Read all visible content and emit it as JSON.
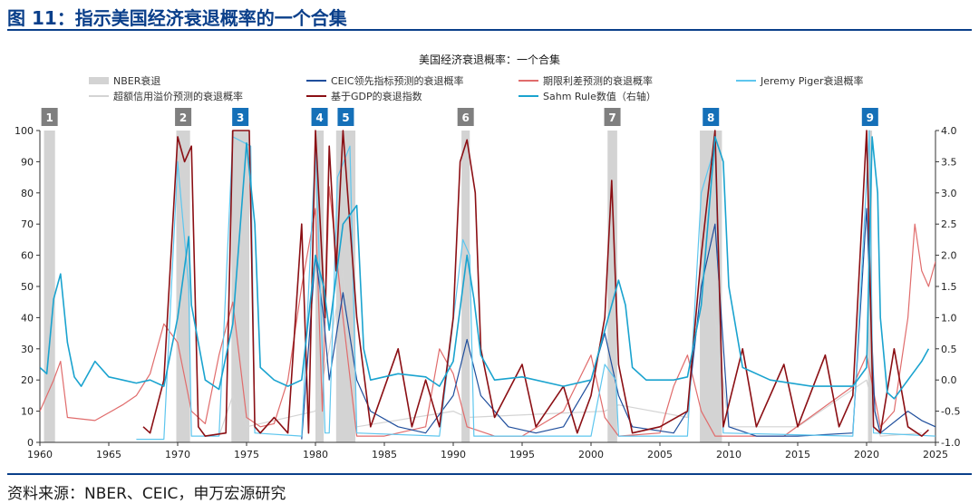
{
  "figure_title": "图 11：指示美国经济衰退概率的一个合集",
  "source": "资料来源：NBER、CEIC，申万宏源研究",
  "colors": {
    "brand": "#0a3f8a",
    "nber": "#d3d3d3",
    "ceic": "#1f4e9c",
    "spread": "#e06c6c",
    "piger": "#5ec6ee",
    "credit": "#d4d4d4",
    "gdp": "#8b0f14",
    "sahm": "#1aa3cf",
    "marker_gray": "#7f7f7f",
    "marker_blue": "#1570b8"
  },
  "chart_data": {
    "type": "line",
    "title": "美国经济衰退概率：一个合集",
    "xlim": [
      1960,
      2025
    ],
    "ylim": [
      0,
      100
    ],
    "y2lim": [
      -1.0,
      4.0
    ],
    "x_ticks": [
      "1960",
      "1965",
      "1970",
      "1975",
      "1980",
      "1985",
      "1990",
      "1995",
      "2000",
      "2005",
      "2010",
      "2015",
      "2020",
      "2025"
    ],
    "y_ticks": [
      "0",
      "10",
      "20",
      "30",
      "40",
      "50",
      "60",
      "70",
      "80",
      "90",
      "100"
    ],
    "y2_ticks": [
      "-1.0",
      "-0.5",
      "0.0",
      "0.5",
      "1.0",
      "1.5",
      "2.0",
      "2.5",
      "3.0",
      "3.5",
      "4.0"
    ],
    "legend": [
      {
        "key": "nber",
        "label": "NBER衰退",
        "style": "band"
      },
      {
        "key": "ceic",
        "label": "CEIC领先指标预测的衰退概率",
        "style": "line"
      },
      {
        "key": "spread",
        "label": "期限利差预测的衰退概率",
        "style": "line"
      },
      {
        "key": "piger",
        "label": "Jeremy Piger衰退概率",
        "style": "line"
      },
      {
        "key": "credit",
        "label": "超额信用溢价预测的衰退概率",
        "style": "line"
      },
      {
        "key": "gdp",
        "label": "基于GDP的衰退指数",
        "style": "line"
      },
      {
        "key": "sahm",
        "label": "Sahm Rule数值（右轴）",
        "style": "line"
      }
    ],
    "recessions": [
      {
        "label": "1",
        "start": 1960.3,
        "end": 1961.1,
        "marker": "gray"
      },
      {
        "label": "2",
        "start": 1969.9,
        "end": 1970.9,
        "marker": "gray"
      },
      {
        "label": "3",
        "start": 1973.9,
        "end": 1975.2,
        "marker": "blue"
      },
      {
        "label": "4",
        "start": 1980.0,
        "end": 1980.6,
        "marker": "blue"
      },
      {
        "label": "5",
        "start": 1981.5,
        "end": 1982.9,
        "marker": "blue"
      },
      {
        "label": "6",
        "start": 1990.6,
        "end": 1991.2,
        "marker": "gray"
      },
      {
        "label": "7",
        "start": 2001.2,
        "end": 2001.9,
        "marker": "gray"
      },
      {
        "label": "8",
        "start": 2007.9,
        "end": 2009.5,
        "marker": "blue"
      },
      {
        "label": "9",
        "start": 2020.1,
        "end": 2020.4,
        "marker": "blue"
      }
    ],
    "series": [
      {
        "key": "credit",
        "name": "超额信用溢价预测的衰退概率",
        "axis": "left",
        "points": [
          [
            1973,
            2
          ],
          [
            1974,
            15
          ],
          [
            1975,
            5
          ],
          [
            1980,
            10
          ],
          [
            1981,
            30
          ],
          [
            1982,
            55
          ],
          [
            1983,
            5
          ],
          [
            1990,
            10
          ],
          [
            1991,
            8
          ],
          [
            2001,
            10
          ],
          [
            2002,
            12
          ],
          [
            2007,
            8
          ],
          [
            2008,
            60
          ],
          [
            2009,
            40
          ],
          [
            2010,
            5
          ],
          [
            2015,
            5
          ],
          [
            2020,
            20
          ],
          [
            2021,
            2
          ],
          [
            2024,
            3
          ]
        ]
      },
      {
        "key": "spread",
        "name": "期限利差预测的衰退概率",
        "axis": "left",
        "points": [
          [
            1960,
            10
          ],
          [
            1961,
            20
          ],
          [
            1961.5,
            26
          ],
          [
            1962,
            8
          ],
          [
            1964,
            7
          ],
          [
            1966,
            12
          ],
          [
            1967,
            15
          ],
          [
            1968,
            22
          ],
          [
            1969,
            38
          ],
          [
            1970,
            32
          ],
          [
            1971,
            10
          ],
          [
            1972,
            6
          ],
          [
            1973,
            28
          ],
          [
            1974,
            45
          ],
          [
            1975,
            8
          ],
          [
            1976,
            5
          ],
          [
            1977,
            6
          ],
          [
            1978,
            20
          ],
          [
            1979,
            50
          ],
          [
            1980,
            75
          ],
          [
            1980.5,
            10
          ],
          [
            1981,
            82
          ],
          [
            1982,
            40
          ],
          [
            1983,
            2
          ],
          [
            1985,
            2
          ],
          [
            1988,
            5
          ],
          [
            1989,
            30
          ],
          [
            1990,
            22
          ],
          [
            1991,
            5
          ],
          [
            1993,
            2
          ],
          [
            1995,
            2
          ],
          [
            1998,
            10
          ],
          [
            2000,
            28
          ],
          [
            2001,
            8
          ],
          [
            2002,
            2
          ],
          [
            2005,
            3
          ],
          [
            2006,
            18
          ],
          [
            2007,
            28
          ],
          [
            2008,
            10
          ],
          [
            2009,
            2
          ],
          [
            2014,
            2
          ],
          [
            2019,
            18
          ],
          [
            2020,
            28
          ],
          [
            2021,
            5
          ],
          [
            2022,
            10
          ],
          [
            2023,
            40
          ],
          [
            2023.5,
            70
          ],
          [
            2024,
            55
          ],
          [
            2024.5,
            50
          ],
          [
            2025,
            58
          ]
        ]
      },
      {
        "key": "ceic",
        "name": "CEIC领先指标预测的衰退概率",
        "axis": "left",
        "points": [
          [
            1979,
            1
          ],
          [
            1980,
            60
          ],
          [
            1980.6,
            40
          ],
          [
            1981,
            20
          ],
          [
            1982,
            48
          ],
          [
            1983,
            20
          ],
          [
            1984,
            10
          ],
          [
            1986,
            5
          ],
          [
            1988,
            3
          ],
          [
            1990,
            15
          ],
          [
            1991,
            33
          ],
          [
            1992,
            15
          ],
          [
            1994,
            5
          ],
          [
            1996,
            3
          ],
          [
            1998,
            5
          ],
          [
            2000,
            20
          ],
          [
            2001,
            35
          ],
          [
            2002,
            15
          ],
          [
            2003,
            5
          ],
          [
            2006,
            3
          ],
          [
            2007,
            10
          ],
          [
            2008,
            50
          ],
          [
            2009,
            70
          ],
          [
            2010,
            5
          ],
          [
            2012,
            2
          ],
          [
            2015,
            2
          ],
          [
            2019,
            3
          ],
          [
            2020,
            75
          ],
          [
            2020.6,
            10
          ],
          [
            2021,
            3
          ],
          [
            2023,
            10
          ],
          [
            2024,
            7
          ],
          [
            2025,
            5
          ]
        ]
      },
      {
        "key": "piger",
        "name": "Jeremy Piger衰退概率",
        "axis": "left",
        "points": [
          [
            1967,
            1
          ],
          [
            1969,
            1
          ],
          [
            1970,
            90
          ],
          [
            1970.8,
            50
          ],
          [
            1971,
            2
          ],
          [
            1973,
            2
          ],
          [
            1974,
            98
          ],
          [
            1975.3,
            95
          ],
          [
            1975.6,
            3
          ],
          [
            1979,
            2
          ],
          [
            1980,
            95
          ],
          [
            1980.7,
            3
          ],
          [
            1981,
            3
          ],
          [
            1981.6,
            85
          ],
          [
            1982.5,
            95
          ],
          [
            1983,
            3
          ],
          [
            1989,
            2
          ],
          [
            1990.7,
            65
          ],
          [
            1991.2,
            60
          ],
          [
            1991.5,
            2
          ],
          [
            2000,
            2
          ],
          [
            2001,
            25
          ],
          [
            2001.8,
            20
          ],
          [
            2002,
            2
          ],
          [
            2007,
            2
          ],
          [
            2008,
            80
          ],
          [
            2009,
            95
          ],
          [
            2009.6,
            3
          ],
          [
            2019,
            2
          ],
          [
            2020.2,
            100
          ],
          [
            2020.5,
            3
          ],
          [
            2025,
            2
          ]
        ]
      },
      {
        "key": "gdp",
        "name": "基于GDP的衰退指数",
        "axis": "left",
        "points": [
          [
            1967.5,
            5
          ],
          [
            1968,
            3
          ],
          [
            1969,
            20
          ],
          [
            1970,
            98
          ],
          [
            1970.5,
            90
          ],
          [
            1971,
            95
          ],
          [
            1971.5,
            5
          ],
          [
            1972,
            2
          ],
          [
            1973.5,
            3
          ],
          [
            1974,
            100
          ],
          [
            1975.2,
            100
          ],
          [
            1975.6,
            5
          ],
          [
            1976,
            3
          ],
          [
            1977,
            8
          ],
          [
            1978,
            3
          ],
          [
            1979,
            70
          ],
          [
            1979.5,
            3
          ],
          [
            1980,
            100
          ],
          [
            1980.7,
            40
          ],
          [
            1981,
            95
          ],
          [
            1981.5,
            55
          ],
          [
            1982,
            100
          ],
          [
            1983,
            40
          ],
          [
            1984,
            5
          ],
          [
            1986,
            30
          ],
          [
            1987,
            5
          ],
          [
            1988,
            20
          ],
          [
            1989,
            5
          ],
          [
            1990,
            40
          ],
          [
            1990.5,
            90
          ],
          [
            1991,
            97
          ],
          [
            1991.6,
            80
          ],
          [
            1992,
            30
          ],
          [
            1993,
            8
          ],
          [
            1995,
            25
          ],
          [
            1996,
            5
          ],
          [
            1998,
            18
          ],
          [
            1999,
            3
          ],
          [
            2000,
            15
          ],
          [
            2001,
            40
          ],
          [
            2001.5,
            84
          ],
          [
            2002,
            25
          ],
          [
            2003,
            3
          ],
          [
            2005,
            5
          ],
          [
            2007,
            10
          ],
          [
            2008,
            60
          ],
          [
            2009,
            100
          ],
          [
            2009.6,
            5
          ],
          [
            2011,
            30
          ],
          [
            2012,
            5
          ],
          [
            2014,
            25
          ],
          [
            2015,
            5
          ],
          [
            2017,
            28
          ],
          [
            2018,
            5
          ],
          [
            2019,
            15
          ],
          [
            2020,
            100
          ],
          [
            2020.5,
            5
          ],
          [
            2021,
            3
          ],
          [
            2022,
            30
          ],
          [
            2023,
            5
          ],
          [
            2024,
            2
          ],
          [
            2024.5,
            4
          ]
        ]
      },
      {
        "key": "sahm",
        "name": "Sahm Rule数值（右轴）",
        "axis": "right",
        "points": [
          [
            1960,
            0.2
          ],
          [
            1960.5,
            0.1
          ],
          [
            1961,
            1.3
          ],
          [
            1961.5,
            1.7
          ],
          [
            1962,
            0.6
          ],
          [
            1962.5,
            0.05
          ],
          [
            1963,
            -0.1
          ],
          [
            1964,
            0.3
          ],
          [
            1965,
            0.05
          ],
          [
            1966,
            0.0
          ],
          [
            1967,
            -0.05
          ],
          [
            1968,
            0.0
          ],
          [
            1969,
            -0.1
          ],
          [
            1970,
            1.0
          ],
          [
            1970.8,
            2.3
          ],
          [
            1971,
            1.2
          ],
          [
            1972,
            0.0
          ],
          [
            1973,
            -0.15
          ],
          [
            1974,
            0.9
          ],
          [
            1975,
            3.8
          ],
          [
            1975.6,
            2.5
          ],
          [
            1976,
            0.2
          ],
          [
            1977,
            0.0
          ],
          [
            1978,
            -0.1
          ],
          [
            1979,
            0.0
          ],
          [
            1980,
            2.0
          ],
          [
            1980.6,
            1.5
          ],
          [
            1981,
            0.8
          ],
          [
            1982,
            2.5
          ],
          [
            1983,
            2.8
          ],
          [
            1983.5,
            0.5
          ],
          [
            1984,
            0.0
          ],
          [
            1986,
            0.1
          ],
          [
            1988,
            0.05
          ],
          [
            1989,
            -0.1
          ],
          [
            1990,
            0.3
          ],
          [
            1991,
            2.0
          ],
          [
            1991.5,
            1.3
          ],
          [
            1992,
            0.4
          ],
          [
            1993,
            0.0
          ],
          [
            1995,
            0.05
          ],
          [
            1998,
            -0.1
          ],
          [
            2000,
            0.0
          ],
          [
            2001,
            0.8
          ],
          [
            2002,
            1.6
          ],
          [
            2002.5,
            1.2
          ],
          [
            2003,
            0.2
          ],
          [
            2004,
            0.0
          ],
          [
            2006,
            0.0
          ],
          [
            2007,
            0.05
          ],
          [
            2008,
            1.2
          ],
          [
            2009,
            3.9
          ],
          [
            2009.6,
            3.5
          ],
          [
            2010,
            1.5
          ],
          [
            2011,
            0.2
          ],
          [
            2013,
            0.0
          ],
          [
            2016,
            -0.1
          ],
          [
            2019,
            -0.1
          ],
          [
            2020,
            0.2
          ],
          [
            2020.4,
            3.9
          ],
          [
            2020.8,
            3.0
          ],
          [
            2021,
            1.0
          ],
          [
            2021.5,
            -0.2
          ],
          [
            2022,
            -0.3
          ],
          [
            2023,
            0.0
          ],
          [
            2024,
            0.3
          ],
          [
            2024.5,
            0.5
          ]
        ]
      }
    ]
  }
}
